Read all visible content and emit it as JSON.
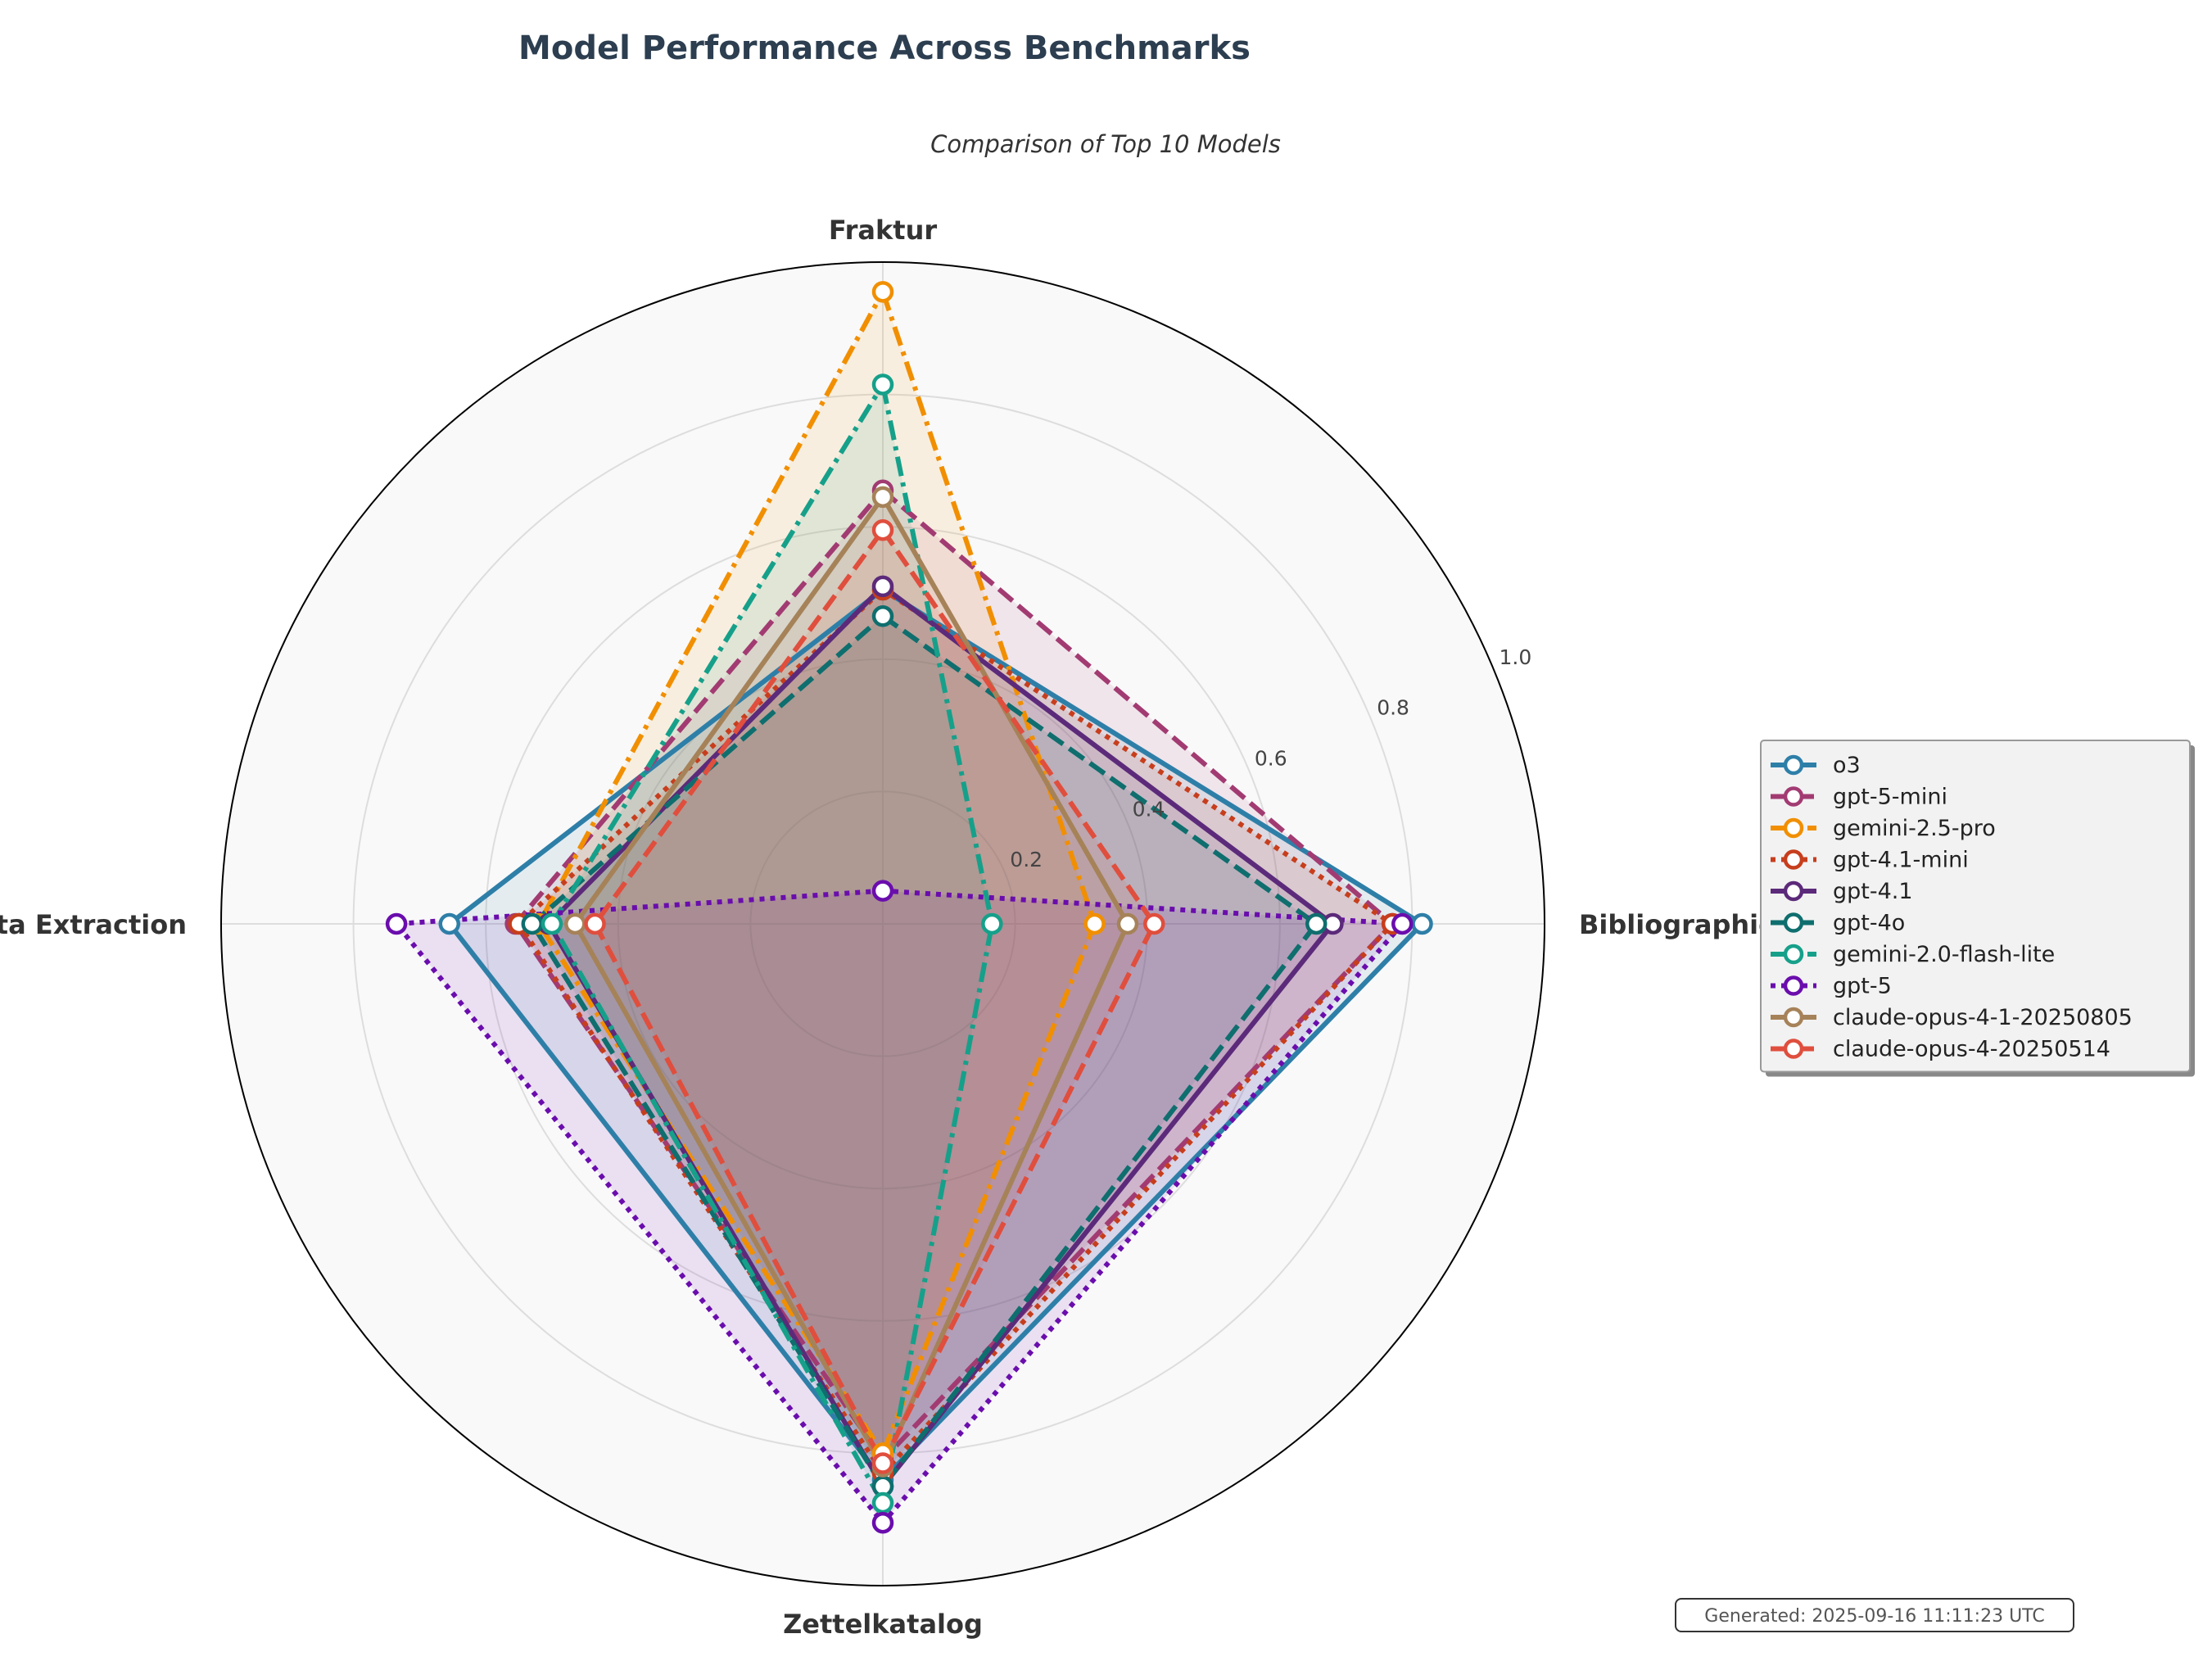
{
  "chart_data": {
    "type": "radar",
    "title": "Model Performance Across Benchmarks",
    "subtitle": "Comparison of Top 10 Models",
    "axes": [
      "Fraktur",
      "Bibliographic Data",
      "Zettelkatalog",
      "Metadata Extraction"
    ],
    "r_range": [
      0,
      1.0
    ],
    "r_ticks": [
      "0.2",
      "0.4",
      "0.6",
      "0.8",
      "1.0"
    ],
    "r_tick_values": [
      0.2,
      0.4,
      0.6,
      0.8,
      1.0
    ],
    "grid": true,
    "legend_position": "right",
    "series": [
      {
        "name": "o3",
        "values": [
          0.505,
          0.815,
          0.84,
          0.655
        ],
        "color": "#2e7fa8",
        "dash": "solid"
      },
      {
        "name": "gpt-5-mini",
        "values": [
          0.655,
          0.77,
          0.81,
          0.555
        ],
        "color": "#a23b72",
        "dash": "dashed"
      },
      {
        "name": "gemini-2.5-pro",
        "values": [
          0.955,
          0.32,
          0.8,
          0.52
        ],
        "color": "#f18f01",
        "dash": "dashdot"
      },
      {
        "name": "gpt-4.1-mini",
        "values": [
          0.505,
          0.77,
          0.83,
          0.55
        ],
        "color": "#c73e1d",
        "dash": "dotted"
      },
      {
        "name": "gpt-4.1",
        "values": [
          0.51,
          0.68,
          0.85,
          0.505
        ],
        "color": "#5c2a7a",
        "dash": "solid"
      },
      {
        "name": "gpt-4o",
        "values": [
          0.465,
          0.655,
          0.85,
          0.53
        ],
        "color": "#0f6e6e",
        "dash": "dashed"
      },
      {
        "name": "gemini-2.0-flash-lite",
        "values": [
          0.815,
          0.165,
          0.875,
          0.5
        ],
        "color": "#16a08a",
        "dash": "dashdot"
      },
      {
        "name": "gpt-5",
        "values": [
          0.05,
          0.785,
          0.905,
          0.735
        ],
        "color": "#6a0dad",
        "dash": "dotted"
      },
      {
        "name": "claude-opus-4-1-20250805",
        "values": [
          0.645,
          0.37,
          0.82,
          0.465
        ],
        "color": "#a68259",
        "dash": "solid"
      },
      {
        "name": "claude-opus-4-20250514",
        "values": [
          0.595,
          0.41,
          0.815,
          0.435
        ],
        "color": "#e04e3d",
        "dash": "dashed"
      }
    ]
  },
  "footer": {
    "generated_text": "Generated: 2025-09-16 11:11:23 UTC"
  }
}
